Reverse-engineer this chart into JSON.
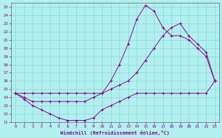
{
  "xlabel": "Windchill (Refroidissement éolien,°C)",
  "xlim": [
    -0.5,
    23.5
  ],
  "ylim": [
    11,
    25.5
  ],
  "xticks": [
    0,
    1,
    2,
    3,
    4,
    5,
    6,
    7,
    8,
    9,
    10,
    11,
    12,
    13,
    14,
    15,
    16,
    17,
    18,
    19,
    20,
    21,
    22,
    23
  ],
  "yticks": [
    11,
    12,
    13,
    14,
    15,
    16,
    17,
    18,
    19,
    20,
    21,
    22,
    23,
    24,
    25
  ],
  "bg_color": "#b2efef",
  "line_color": "#880088",
  "grid_color": "#88d8d8",
  "curve_dip_x": [
    0,
    1,
    2,
    3,
    4,
    5,
    6,
    7,
    8,
    9,
    10,
    11,
    12,
    13,
    14,
    15,
    16,
    17,
    18,
    19,
    20,
    21,
    22,
    23
  ],
  "curve_dip_y": [
    14.5,
    13.8,
    13.0,
    12.5,
    12.0,
    11.5,
    11.2,
    11.2,
    11.2,
    11.5,
    12.5,
    13.0,
    13.5,
    14.0,
    14.5,
    14.5,
    14.5,
    14.5,
    14.5,
    14.5,
    14.5,
    14.5,
    14.5,
    16.0
  ],
  "curve_peak_x": [
    0,
    1,
    2,
    3,
    4,
    5,
    6,
    7,
    8,
    9,
    10,
    11,
    12,
    13,
    14,
    15,
    16,
    17,
    18,
    19,
    20,
    21,
    22,
    23
  ],
  "curve_peak_y": [
    14.5,
    14.0,
    13.5,
    13.5,
    13.5,
    13.5,
    13.5,
    13.5,
    13.5,
    14.0,
    14.5,
    16.0,
    18.0,
    20.5,
    23.5,
    25.2,
    24.5,
    22.5,
    21.5,
    21.5,
    21.0,
    20.0,
    19.0,
    16.0
  ],
  "curve_diag_x": [
    0,
    1,
    2,
    3,
    4,
    5,
    6,
    7,
    8,
    9,
    10,
    11,
    12,
    13,
    14,
    15,
    16,
    17,
    18,
    19,
    20,
    21,
    22,
    23
  ],
  "curve_diag_y": [
    14.5,
    14.5,
    14.5,
    14.5,
    14.5,
    14.5,
    14.5,
    14.5,
    14.5,
    14.5,
    14.5,
    15.0,
    15.5,
    16.0,
    17.0,
    18.5,
    20.0,
    21.5,
    22.5,
    23.0,
    21.5,
    20.5,
    19.5,
    16.0
  ]
}
